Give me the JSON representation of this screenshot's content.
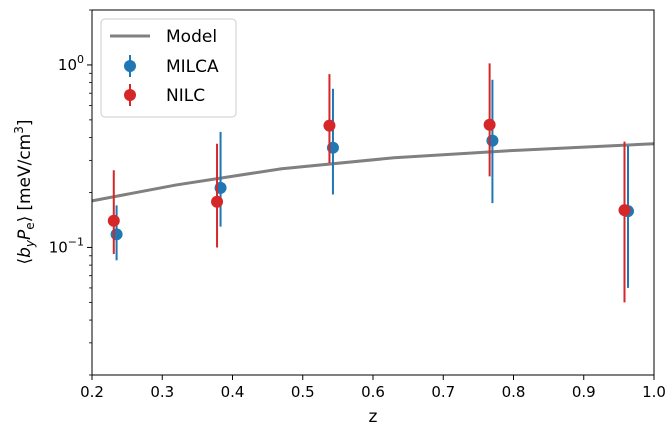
{
  "chart_data": {
    "type": "scatter",
    "xlabel": "z",
    "ylabel": "⟨b_y P_e⟩ [meV/cm³]",
    "ylabel_parts": {
      "lbracket": "⟨",
      "b": "b",
      "sub_y": "y",
      "P": "P",
      "sub_e": "e",
      "rbracket": "⟩",
      "unit": "[meV/cm",
      "sup3": "3",
      "unit_close": "]"
    },
    "xlim": [
      0.2,
      1.0
    ],
    "ylim": [
      0.02,
      2.0
    ],
    "yscale": "log",
    "grid": false,
    "legend_position": "upper left",
    "xticks": [
      0.2,
      0.3,
      0.4,
      0.5,
      0.6,
      0.7,
      0.8,
      0.9,
      1.0
    ],
    "xtick_labels": [
      "0.2",
      "0.3",
      "0.4",
      "0.5",
      "0.6",
      "0.7",
      "0.8",
      "0.9",
      "1.0"
    ],
    "yticks_major": [
      {
        "value": 0.1,
        "base": "10",
        "exp": "−1"
      },
      {
        "value": 1.0,
        "base": "10",
        "exp": "0"
      }
    ],
    "model": {
      "name": "Model",
      "color": "#808080",
      "x": [
        0.2,
        0.32,
        0.47,
        0.63,
        0.8,
        1.0
      ],
      "y": [
        0.18,
        0.22,
        0.27,
        0.31,
        0.34,
        0.37
      ]
    },
    "series": [
      {
        "name": "MILCA",
        "color": "#1f77b4",
        "x": [
          0.235,
          0.383,
          0.543,
          0.77,
          0.963
        ],
        "y": [
          0.118,
          0.212,
          0.352,
          0.385,
          0.158
        ],
        "yerr_low": [
          0.085,
          0.13,
          0.195,
          0.175,
          0.06
        ],
        "yerr_high": [
          0.17,
          0.43,
          0.74,
          0.83,
          0.36
        ]
      },
      {
        "name": "NILC",
        "color": "#d62728",
        "x": [
          0.231,
          0.378,
          0.538,
          0.766,
          0.958
        ],
        "y": [
          0.14,
          0.178,
          0.465,
          0.47,
          0.16
        ],
        "yerr_low": [
          0.092,
          0.1,
          0.29,
          0.245,
          0.05
        ],
        "yerr_high": [
          0.265,
          0.37,
          0.89,
          1.02,
          0.38
        ]
      }
    ]
  }
}
